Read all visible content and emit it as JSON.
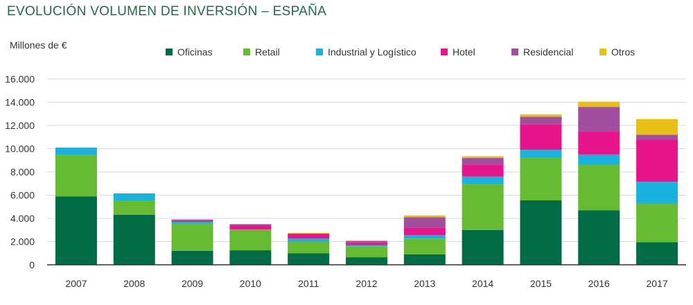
{
  "title": "EVOLUCIÓN VOLUMEN DE INVERSIÓN – ESPAÑA",
  "chart_data": {
    "type": "bar",
    "stacked": true,
    "title": "EVOLUCIÓN VOLUMEN DE INVERSIÓN – ESPAÑA",
    "ylabel": "Millones de €",
    "xlabel": "",
    "ylim": [
      0,
      16000
    ],
    "yticks": [
      0,
      2000,
      4000,
      6000,
      8000,
      10000,
      12000,
      14000,
      16000
    ],
    "ytick_labels": [
      "0",
      "2.000",
      "4.000",
      "6.000",
      "8.000",
      "10.000",
      "12.000",
      "14.000",
      "16.000"
    ],
    "grid": true,
    "legend_position": "top",
    "categories": [
      "2007",
      "2008",
      "2009",
      "2010",
      "2011",
      "2012",
      "2013",
      "2014",
      "2015",
      "2016",
      "2017"
    ],
    "series": [
      {
        "name": "Oficinas",
        "color": "#006b45",
        "values": [
          5900,
          4300,
          1200,
          1250,
          1000,
          650,
          900,
          3000,
          5550,
          4700,
          1950
        ]
      },
      {
        "name": "Retail",
        "color": "#66bb33",
        "values": [
          3550,
          1250,
          2350,
          1750,
          1000,
          950,
          1350,
          3950,
          3700,
          3900,
          3300
        ]
      },
      {
        "name": "Industrial y Logístico",
        "color": "#1ab3e0",
        "values": [
          650,
          600,
          150,
          50,
          250,
          100,
          300,
          650,
          650,
          900,
          1900
        ]
      },
      {
        "name": "Hotel",
        "color": "#e8148c",
        "values": [
          0,
          0,
          100,
          350,
          400,
          200,
          650,
          1000,
          2200,
          2000,
          3650
        ]
      },
      {
        "name": "Residencial",
        "color": "#a24e9e",
        "values": [
          0,
          0,
          100,
          100,
          50,
          150,
          900,
          600,
          650,
          2100,
          400
        ]
      },
      {
        "name": "Otros",
        "color": "#e6c014",
        "values": [
          0,
          0,
          0,
          0,
          50,
          50,
          150,
          150,
          200,
          450,
          1350
        ]
      }
    ]
  }
}
